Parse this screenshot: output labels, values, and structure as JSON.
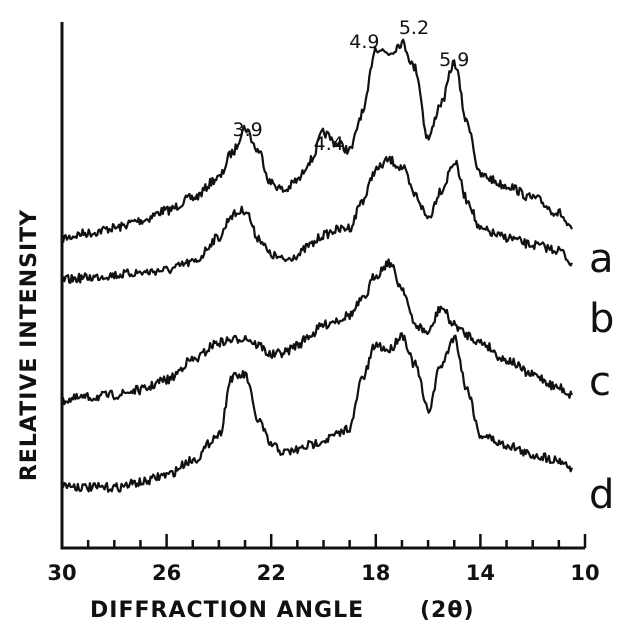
{
  "chart_data": {
    "type": "line",
    "xlabel": "DIFFRACTION ANGLE",
    "xlabel_unit": "(2θ)",
    "ylabel": "RELATIVE INTENSITY",
    "xlim": [
      30,
      10
    ],
    "x_reversed": true,
    "x_ticks": [
      30,
      26,
      22,
      18,
      14,
      10
    ],
    "y_ticks_shown": false,
    "grid": false,
    "peak_annotations": [
      {
        "label": "3.9",
        "x": 22.9
      },
      {
        "label": "4.4",
        "x": 19.8
      },
      {
        "label": "4.9",
        "x": 17.9
      },
      {
        "label": "5.2",
        "x": 17.0
      },
      {
        "label": "5.9",
        "x": 15.0
      }
    ],
    "series": [
      {
        "name": "a",
        "x": [
          30,
          29,
          28,
          27,
          26,
          25,
          24,
          23.5,
          23,
          22.5,
          22,
          21.5,
          21,
          20.5,
          20,
          19.5,
          19,
          18.5,
          18,
          17.5,
          17,
          16.5,
          16,
          15.5,
          15,
          14.5,
          14,
          13,
          12,
          11,
          10.5
        ],
        "y": [
          0.12,
          0.14,
          0.16,
          0.19,
          0.23,
          0.28,
          0.36,
          0.46,
          0.56,
          0.47,
          0.34,
          0.31,
          0.35,
          0.43,
          0.54,
          0.5,
          0.47,
          0.62,
          0.88,
          0.86,
          0.9,
          0.8,
          0.52,
          0.66,
          0.82,
          0.58,
          0.37,
          0.33,
          0.28,
          0.22,
          0.15
        ]
      },
      {
        "name": "b",
        "x": [
          30,
          29,
          28,
          27,
          26,
          25,
          24,
          23.5,
          23,
          22.5,
          22,
          21.5,
          21,
          20.5,
          20,
          19.5,
          19,
          18.5,
          18,
          17.5,
          17,
          16.5,
          16,
          15.5,
          15,
          14.5,
          14,
          13,
          12,
          11,
          10.5
        ],
        "y": [
          0.08,
          0.09,
          0.1,
          0.11,
          0.12,
          0.15,
          0.25,
          0.34,
          0.36,
          0.25,
          0.18,
          0.16,
          0.18,
          0.22,
          0.26,
          0.28,
          0.29,
          0.4,
          0.52,
          0.56,
          0.53,
          0.42,
          0.33,
          0.44,
          0.55,
          0.4,
          0.28,
          0.25,
          0.22,
          0.2,
          0.15
        ]
      },
      {
        "name": "c",
        "x": [
          30,
          29,
          28,
          27,
          26,
          25,
          24,
          23.5,
          23,
          22.5,
          22,
          21.5,
          21,
          20.5,
          20,
          19.5,
          19,
          18.5,
          18,
          17.5,
          17,
          16.5,
          16,
          15.5,
          15,
          14.5,
          14,
          13,
          12,
          11,
          10.5
        ],
        "y": [
          0.0,
          0.01,
          0.02,
          0.04,
          0.08,
          0.16,
          0.23,
          0.24,
          0.25,
          0.22,
          0.18,
          0.19,
          0.22,
          0.26,
          0.3,
          0.32,
          0.34,
          0.4,
          0.5,
          0.55,
          0.45,
          0.3,
          0.27,
          0.37,
          0.3,
          0.26,
          0.23,
          0.16,
          0.1,
          0.05,
          0.02
        ]
      },
      {
        "name": "d",
        "x": [
          30,
          29,
          28,
          27,
          26,
          25,
          24,
          23.5,
          23,
          22.5,
          22,
          21.5,
          21,
          20.5,
          20,
          19.5,
          19,
          18.5,
          18,
          17.5,
          17,
          16.5,
          16,
          15.5,
          15,
          14.5,
          14,
          13,
          12,
          11,
          10.5
        ],
        "y": [
          0.02,
          0.01,
          0.01,
          0.03,
          0.06,
          0.12,
          0.22,
          0.45,
          0.46,
          0.28,
          0.18,
          0.15,
          0.16,
          0.18,
          0.2,
          0.22,
          0.25,
          0.45,
          0.58,
          0.56,
          0.62,
          0.5,
          0.32,
          0.5,
          0.61,
          0.4,
          0.22,
          0.18,
          0.14,
          0.12,
          0.09
        ]
      }
    ]
  }
}
